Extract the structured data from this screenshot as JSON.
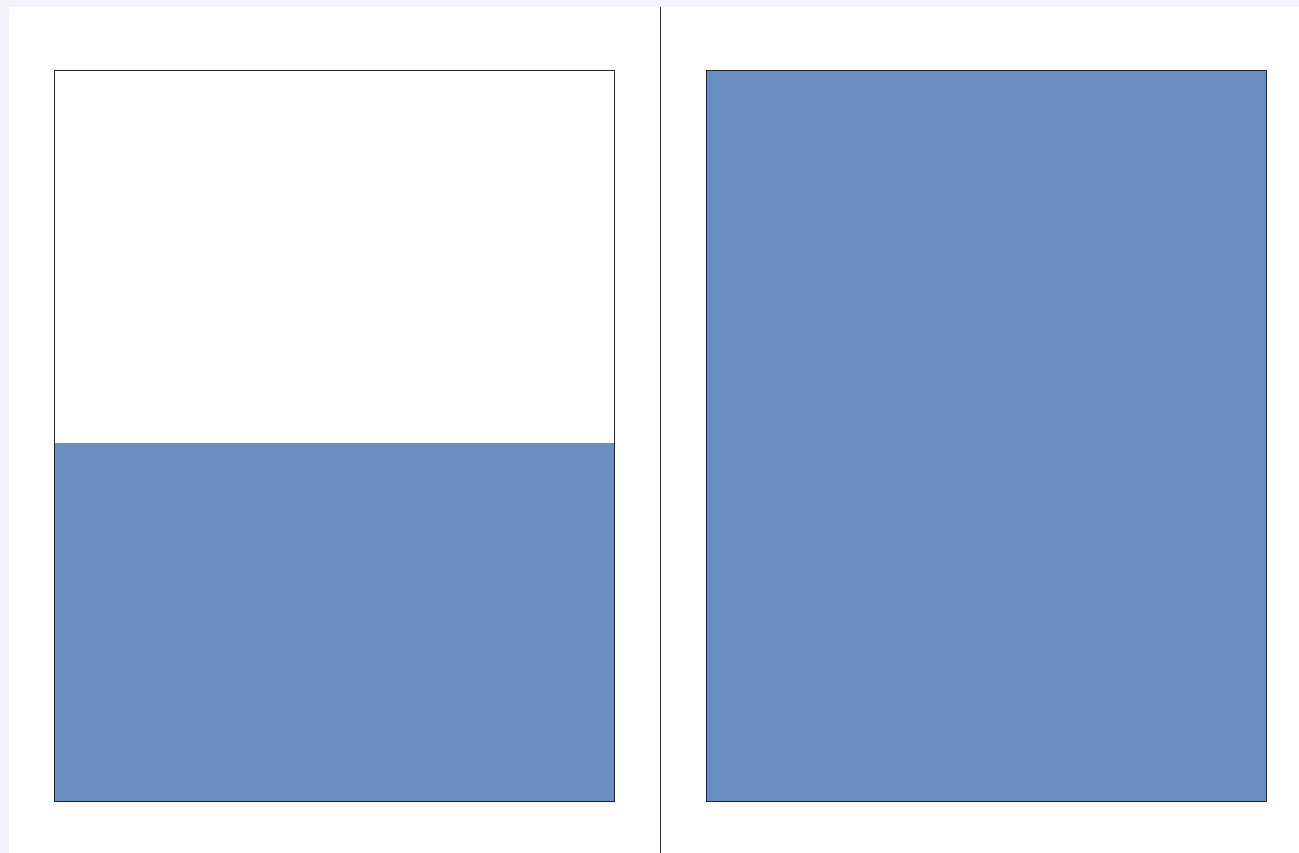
{
  "colors": {
    "page_background": "#f3f4f9",
    "canvas_background": "#ffffff",
    "fill": "#6a8ec1",
    "border": "#222222",
    "divider": "#333333"
  },
  "panels": [
    {
      "name": "left-panel",
      "fill_fraction": 0.49
    },
    {
      "name": "right-panel",
      "fill_fraction": 1.0
    }
  ]
}
